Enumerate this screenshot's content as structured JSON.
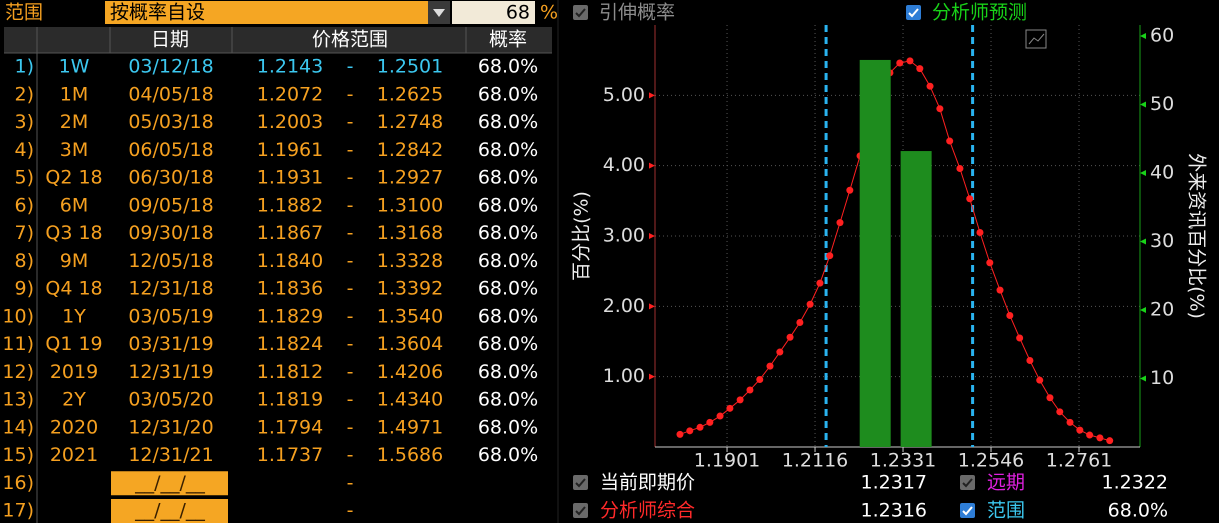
{
  "header": {
    "range_label": "范围",
    "mode": "按概率自设",
    "prob_input": "68",
    "pct": "%"
  },
  "table": {
    "columns": [
      "日期",
      "价格范围",
      "概率"
    ],
    "rows": [
      {
        "index": "1)",
        "tenor": "1W",
        "date": "03/12/18",
        "low": "1.2143",
        "sep": "-",
        "high": "1.2501",
        "prob": "68.0%"
      },
      {
        "index": "2)",
        "tenor": "1M",
        "date": "04/05/18",
        "low": "1.2072",
        "sep": "-",
        "high": "1.2625",
        "prob": "68.0%"
      },
      {
        "index": "3)",
        "tenor": "2M",
        "date": "05/03/18",
        "low": "1.2003",
        "sep": "-",
        "high": "1.2748",
        "prob": "68.0%"
      },
      {
        "index": "4)",
        "tenor": "3M",
        "date": "06/05/18",
        "low": "1.1961",
        "sep": "-",
        "high": "1.2842",
        "prob": "68.0%"
      },
      {
        "index": "5)",
        "tenor": "Q2 18",
        "date": "06/30/18",
        "low": "1.1931",
        "sep": "-",
        "high": "1.2927",
        "prob": "68.0%"
      },
      {
        "index": "6)",
        "tenor": "6M",
        "date": "09/05/18",
        "low": "1.1882",
        "sep": "-",
        "high": "1.3100",
        "prob": "68.0%"
      },
      {
        "index": "7)",
        "tenor": "Q3 18",
        "date": "09/30/18",
        "low": "1.1867",
        "sep": "-",
        "high": "1.3168",
        "prob": "68.0%"
      },
      {
        "index": "8)",
        "tenor": "9M",
        "date": "12/05/18",
        "low": "1.1840",
        "sep": "-",
        "high": "1.3328",
        "prob": "68.0%"
      },
      {
        "index": "9)",
        "tenor": "Q4 18",
        "date": "12/31/18",
        "low": "1.1836",
        "sep": "-",
        "high": "1.3392",
        "prob": "68.0%"
      },
      {
        "index": "10)",
        "tenor": "1Y",
        "date": "03/05/19",
        "low": "1.1829",
        "sep": "-",
        "high": "1.3540",
        "prob": "68.0%"
      },
      {
        "index": "11)",
        "tenor": "Q1 19",
        "date": "03/31/19",
        "low": "1.1824",
        "sep": "-",
        "high": "1.3604",
        "prob": "68.0%"
      },
      {
        "index": "12)",
        "tenor": "2019",
        "date": "12/31/19",
        "low": "1.1812",
        "sep": "-",
        "high": "1.4206",
        "prob": "68.0%"
      },
      {
        "index": "13)",
        "tenor": "2Y",
        "date": "03/05/20",
        "low": "1.1819",
        "sep": "-",
        "high": "1.4340",
        "prob": "68.0%"
      },
      {
        "index": "14)",
        "tenor": "2020",
        "date": "12/31/20",
        "low": "1.1794",
        "sep": "-",
        "high": "1.4971",
        "prob": "68.0%"
      },
      {
        "index": "15)",
        "tenor": "2021",
        "date": "12/31/21",
        "low": "1.1737",
        "sep": "-",
        "high": "1.5686",
        "prob": "68.0%"
      }
    ],
    "blank_rows": [
      {
        "index": "16)",
        "date": "__/__/__",
        "sep": "-"
      },
      {
        "index": "17)",
        "date": "__/__/__",
        "sep": "-"
      }
    ]
  },
  "toggles": [
    {
      "label": "引伸概率",
      "color": "#8c8c8c",
      "checked": false
    },
    {
      "label": "分析师预测",
      "color": "#19d219",
      "checked": true
    }
  ],
  "chart_data": {
    "type": "line",
    "ylabel": "百分比(%)",
    "y2label": "外来资讯百分比(%)",
    "xlim": [
      1.1725,
      1.291
    ],
    "xticks": [
      1.1901,
      1.2116,
      1.2331,
      1.2546,
      1.2761
    ],
    "ylim": [
      0,
      6
    ],
    "yticks": [
      {
        "value": 1,
        "label": "1.00"
      },
      {
        "value": 2,
        "label": "2.00"
      },
      {
        "value": 3,
        "label": "3.00"
      },
      {
        "value": 4,
        "label": "4.00"
      },
      {
        "value": 5,
        "label": "5.00"
      }
    ],
    "y2lim": [
      0,
      61.6
    ],
    "y2ticks": [
      10,
      20,
      30,
      40,
      50,
      60
    ],
    "grid": true,
    "series": [
      {
        "type": "line",
        "color": "#ff2020",
        "x": [
          1.1786,
          1.181,
          1.1835,
          1.1859,
          1.1884,
          1.1908,
          1.1933,
          1.1957,
          1.1981,
          1.2006,
          1.203,
          1.2055,
          1.2079,
          1.2104,
          1.2128,
          1.2152,
          1.2177,
          1.2201,
          1.2226,
          1.225,
          1.2275,
          1.2299,
          1.2323,
          1.2348,
          1.2372,
          1.2397,
          1.2421,
          1.2445,
          1.247,
          1.2494,
          1.2519,
          1.2543,
          1.2568,
          1.2592,
          1.2616,
          1.2641,
          1.2665,
          1.269,
          1.2714,
          1.2739,
          1.2763,
          1.2787,
          1.2812,
          1.2836
        ],
        "values": [
          0.18,
          0.23,
          0.28,
          0.35,
          0.44,
          0.55,
          0.67,
          0.81,
          0.96,
          1.15,
          1.35,
          1.56,
          1.77,
          2.03,
          2.33,
          2.72,
          3.19,
          3.65,
          4.14,
          4.64,
          5.04,
          5.32,
          5.46,
          5.49,
          5.38,
          5.13,
          4.81,
          4.35,
          3.96,
          3.53,
          3.05,
          2.62,
          2.23,
          1.87,
          1.55,
          1.23,
          0.95,
          0.7,
          0.5,
          0.35,
          0.24,
          0.17,
          0.13,
          0.09
        ]
      },
      {
        "type": "bar",
        "name": "分析师预测",
        "color": "#1e8c1e",
        "axis": "y2",
        "x": [
          1.2263,
          1.2363
        ],
        "values": [
          56.5,
          43.2
        ]
      }
    ]
  },
  "legend": [
    {
      "label": "当前即期价",
      "value": "1.2317",
      "color": "#ffffff",
      "checked": false
    },
    {
      "label": "远期",
      "value": "1.2322",
      "color": "#e020e0",
      "checked": false
    },
    {
      "label": "分析师综合",
      "value": "1.2316",
      "color": "#ff2a2a",
      "checked": false
    },
    {
      "label": "范围",
      "value": "68.0%",
      "color": "#3cc8f0",
      "checked": true
    }
  ]
}
